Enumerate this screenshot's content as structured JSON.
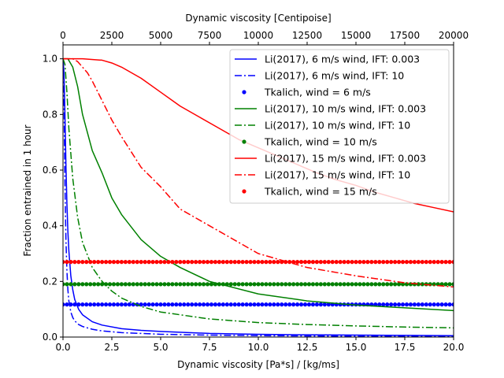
{
  "chart_data": {
    "type": "line",
    "xlabel": "Dynamic viscosity [Pa*s] / [kg/ms]",
    "ylabel": "Fraction entrained in 1 hour",
    "top_xlabel": "Dynamic viscosity [Centipoise]",
    "xlim": [
      0,
      20
    ],
    "ylim": [
      0,
      1.05
    ],
    "top_xlim": [
      0,
      20000
    ],
    "x_ticks": [
      "0.0",
      "2.5",
      "5.0",
      "7.5",
      "10.0",
      "12.5",
      "15.0",
      "17.5",
      "20.0"
    ],
    "y_ticks": [
      "0.0",
      "0.2",
      "0.4",
      "0.6",
      "0.8",
      "1.0"
    ],
    "top_x_ticks": [
      "0",
      "2500",
      "5000",
      "7500",
      "10000",
      "12500",
      "15000",
      "17500",
      "20000"
    ],
    "grid": false,
    "legend_position": "top-right",
    "colors": {
      "wind_6": "#0000ff",
      "wind_10": "#008000",
      "wind_15": "#ff0000"
    },
    "series": [
      {
        "name": "Li(2017), 6 m/s wind, IFT: 0.003",
        "style": "solid",
        "color": "#0000ff",
        "x": [
          0,
          0.05,
          0.1,
          0.15,
          0.2,
          0.25,
          0.3,
          0.4,
          0.5,
          0.6,
          0.8,
          1.0,
          1.5,
          2.0,
          3.0,
          4.0,
          5.0,
          7.5,
          10,
          12.5,
          15,
          17.5,
          20
        ],
        "y": [
          1.0,
          0.95,
          0.8,
          0.62,
          0.48,
          0.38,
          0.31,
          0.22,
          0.17,
          0.135,
          0.1,
          0.08,
          0.055,
          0.043,
          0.03,
          0.024,
          0.02,
          0.013,
          0.01,
          0.008,
          0.007,
          0.006,
          0.005
        ]
      },
      {
        "name": "Li(2017), 6 m/s wind, IFT: 10",
        "style": "dashdot",
        "color": "#0000ff",
        "x": [
          0,
          0.05,
          0.1,
          0.15,
          0.2,
          0.25,
          0.3,
          0.4,
          0.5,
          0.6,
          0.8,
          1.0,
          1.5,
          2.0,
          3.0,
          4.0,
          5.0,
          7.5,
          10,
          12.5,
          15,
          17.5,
          20
        ],
        "y": [
          1.0,
          0.85,
          0.55,
          0.35,
          0.24,
          0.17,
          0.13,
          0.09,
          0.07,
          0.058,
          0.045,
          0.038,
          0.028,
          0.022,
          0.016,
          0.013,
          0.01,
          0.007,
          0.005,
          0.004,
          0.003,
          0.003,
          0.002
        ]
      },
      {
        "name": "Tkalich, wind = 6 m/s",
        "style": "dots",
        "color": "#0000ff",
        "x_range": [
          0,
          20
        ],
        "y_const": 0.117
      },
      {
        "name": "Li(2017), 10 m/s wind, IFT: 0.003",
        "style": "solid",
        "color": "#008000",
        "x": [
          0,
          0.25,
          0.5,
          0.75,
          1.0,
          1.5,
          2.0,
          2.5,
          3.0,
          4.0,
          5.0,
          6.0,
          7.5,
          10,
          12.5,
          15,
          17.5,
          20
        ],
        "y": [
          1.0,
          1.0,
          0.97,
          0.9,
          0.8,
          0.67,
          0.59,
          0.5,
          0.44,
          0.35,
          0.29,
          0.25,
          0.2,
          0.155,
          0.13,
          0.115,
          0.105,
          0.095
        ]
      },
      {
        "name": "Li(2017), 10 m/s wind, IFT: 10",
        "style": "dashdot",
        "color": "#008000",
        "x": [
          0,
          0.1,
          0.2,
          0.3,
          0.5,
          0.75,
          1.0,
          1.5,
          2.0,
          2.5,
          3.0,
          4.0,
          5.0,
          7.5,
          10,
          12.5,
          15,
          17.5,
          20
        ],
        "y": [
          1.0,
          0.98,
          0.88,
          0.75,
          0.57,
          0.43,
          0.34,
          0.25,
          0.2,
          0.165,
          0.14,
          0.11,
          0.09,
          0.065,
          0.052,
          0.045,
          0.04,
          0.036,
          0.033
        ]
      },
      {
        "name": "Tkalich, wind = 10 m/s",
        "style": "dots",
        "color": "#008000",
        "x_range": [
          0,
          20
        ],
        "y_const": 0.19
      },
      {
        "name": "Li(2017), 15 m/s wind, IFT: 0.003",
        "style": "solid",
        "color": "#ff0000",
        "x": [
          0,
          1.0,
          2.0,
          2.5,
          3.0,
          4.0,
          5.0,
          6.0,
          7.0,
          8.0,
          9.0,
          10,
          11,
          12,
          13,
          14,
          15,
          16,
          17,
          18,
          19,
          20
        ],
        "y": [
          1.0,
          1.0,
          0.995,
          0.985,
          0.97,
          0.93,
          0.88,
          0.83,
          0.79,
          0.75,
          0.71,
          0.68,
          0.65,
          0.62,
          0.59,
          0.565,
          0.545,
          0.52,
          0.5,
          0.48,
          0.465,
          0.45
        ]
      },
      {
        "name": "Li(2017), 15 m/s wind, IFT: 10",
        "style": "dashdot",
        "color": "#ff0000",
        "x": [
          0,
          0.5,
          0.75,
          1.0,
          1.25,
          1.5,
          2.0,
          2.5,
          3.0,
          4.0,
          5.0,
          6.0,
          7.5,
          10,
          12.5,
          15,
          17.5,
          20
        ],
        "y": [
          1.0,
          1.0,
          0.99,
          0.97,
          0.95,
          0.92,
          0.85,
          0.78,
          0.72,
          0.61,
          0.54,
          0.46,
          0.4,
          0.3,
          0.25,
          0.22,
          0.195,
          0.18
        ]
      },
      {
        "name": "Tkalich, wind = 15 m/s",
        "style": "dots",
        "color": "#ff0000",
        "x_range": [
          0,
          20
        ],
        "y_const": 0.27
      }
    ]
  }
}
